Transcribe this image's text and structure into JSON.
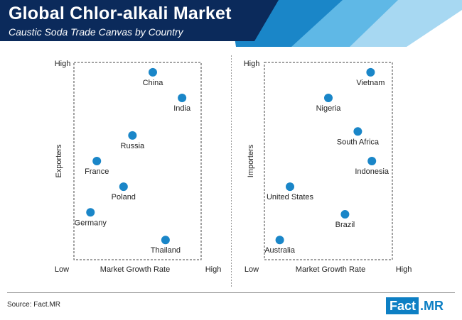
{
  "header": {
    "title": "Global Chlor-alkali Market",
    "subtitle": "Caustic Soda Trade Canvas by Country",
    "colors": {
      "navy": "#0b2a5b",
      "mid_blue": "#1a86c8",
      "light_blue": "#5fb8e6",
      "pale_blue": "#a7d8f2"
    }
  },
  "chart_data": [
    {
      "type": "scatter",
      "title": "",
      "xlabel": "Market Growth Rate",
      "ylabel": "Exporters",
      "x_tick_labels": {
        "low": "Low",
        "high": "High"
      },
      "y_tick_labels": {
        "high": "High"
      },
      "xlim": [
        0,
        10
      ],
      "ylim": [
        0,
        10
      ],
      "grid": false,
      "point_color": "#1a86c8",
      "points": [
        {
          "label": "China",
          "x": 6.2,
          "y": 9.5
        },
        {
          "label": "India",
          "x": 8.5,
          "y": 8.2
        },
        {
          "label": "Russia",
          "x": 4.6,
          "y": 6.3
        },
        {
          "label": "France",
          "x": 1.8,
          "y": 5.0
        },
        {
          "label": "Poland",
          "x": 3.9,
          "y": 3.7
        },
        {
          "label": "Germany",
          "x": 1.3,
          "y": 2.4
        },
        {
          "label": "Thailand",
          "x": 7.2,
          "y": 1.0
        }
      ]
    },
    {
      "type": "scatter",
      "title": "",
      "xlabel": "Market Growth Rate",
      "ylabel": "Importers",
      "x_tick_labels": {
        "low": "Low",
        "high": "High"
      },
      "y_tick_labels": {
        "high": "High"
      },
      "xlim": [
        0,
        10
      ],
      "ylim": [
        0,
        10
      ],
      "grid": false,
      "point_color": "#1a86c8",
      "points": [
        {
          "label": "Vietnam",
          "x": 8.3,
          "y": 9.5
        },
        {
          "label": "Nigeria",
          "x": 5.0,
          "y": 8.2
        },
        {
          "label": "South Africa",
          "x": 7.3,
          "y": 6.5
        },
        {
          "label": "Indonesia",
          "x": 8.4,
          "y": 5.0
        },
        {
          "label": "United States",
          "x": 2.0,
          "y": 3.7
        },
        {
          "label": "Brazil",
          "x": 6.3,
          "y": 2.3
        },
        {
          "label": "Australia",
          "x": 1.2,
          "y": 1.0
        }
      ]
    }
  ],
  "footer": {
    "source": "Source: Fact.MR",
    "logo_part1": "Fact",
    "logo_part2": ".MR"
  }
}
